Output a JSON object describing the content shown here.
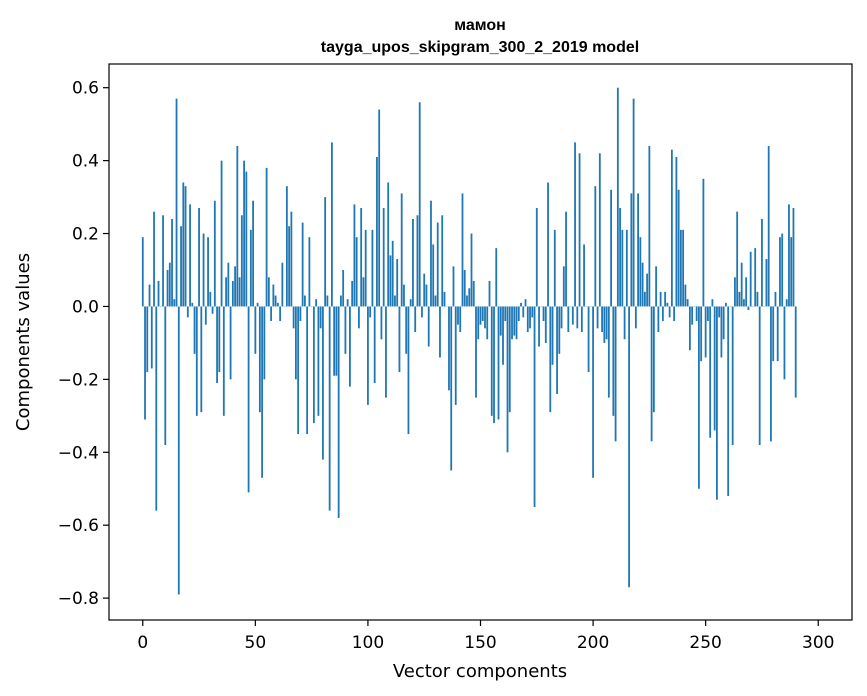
{
  "chart_data": {
    "type": "bar",
    "title": "мамон",
    "subtitle": "tayga_upos_skipgram_300_2_2019 model",
    "xlabel": "Vector components",
    "ylabel": "Components values",
    "xlim": [
      -15,
      315
    ],
    "ylim": [
      -0.86,
      0.665
    ],
    "xticks": [
      0,
      50,
      100,
      150,
      200,
      250,
      300
    ],
    "yticks": [
      -0.8,
      -0.6,
      -0.4,
      -0.2,
      0.0,
      0.2,
      0.4,
      0.6
    ],
    "ytick_labels": [
      "−0.8",
      "−0.6",
      "−0.4",
      "−0.2",
      "0.0",
      "0.2",
      "0.4",
      "0.6"
    ],
    "xtick_labels": [
      "0",
      "50",
      "100",
      "150",
      "200",
      "250",
      "300"
    ],
    "bar_color": "#1f77b4",
    "grid": false,
    "values": [
      0.19,
      -0.31,
      -0.18,
      0.06,
      -0.17,
      0.26,
      -0.56,
      0.07,
      0.0,
      0.25,
      -0.38,
      0.1,
      0.12,
      0.24,
      0.02,
      0.57,
      -0.79,
      0.22,
      0.34,
      0.33,
      -0.03,
      0.28,
      0.01,
      -0.13,
      -0.3,
      0.27,
      -0.29,
      0.2,
      -0.05,
      0.19,
      0.04,
      -0.02,
      0.29,
      -0.21,
      -0.18,
      0.4,
      -0.3,
      0.08,
      0.12,
      -0.2,
      0.07,
      0.11,
      0.44,
      0.08,
      0.25,
      0.4,
      0.37,
      -0.51,
      0.21,
      0.29,
      -0.13,
      0.01,
      -0.29,
      -0.47,
      -0.2,
      0.38,
      0.08,
      -0.04,
      0.06,
      0.03,
      0.01,
      -0.04,
      0.12,
      0.0,
      0.33,
      0.22,
      0.26,
      -0.06,
      -0.2,
      -0.35,
      -0.04,
      0.23,
      0.03,
      -0.35,
      0.19,
      0.0,
      -0.32,
      0.02,
      -0.3,
      -0.06,
      -0.42,
      0.3,
      0.03,
      -0.56,
      0.45,
      -0.19,
      -0.19,
      -0.58,
      0.03,
      0.1,
      -0.13,
      0.02,
      -0.22,
      0.07,
      0.28,
      0.19,
      -0.06,
      0.27,
      0.08,
      0.21,
      -0.27,
      -0.03,
      0.21,
      -0.21,
      0.41,
      0.54,
      -0.09,
      0.27,
      -0.25,
      0.34,
      0.14,
      0.18,
      0.03,
      0.13,
      -0.18,
      0.31,
      0.06,
      -0.13,
      -0.35,
      0.02,
      0.24,
      -0.07,
      0.25,
      0.56,
      -0.03,
      0.09,
      0.06,
      -0.11,
      0.29,
      0.17,
      0.03,
      0.23,
      -0.14,
      0.25,
      0.04,
      0.0,
      -0.23,
      -0.45,
      0.11,
      -0.27,
      -0.05,
      -0.07,
      0.31,
      0.1,
      0.03,
      0.05,
      0.2,
      0.07,
      -0.25,
      -0.09,
      -0.05,
      -0.04,
      -0.06,
      -0.09,
      0.07,
      -0.3,
      -0.32,
      0.16,
      -0.31,
      -0.08,
      -0.16,
      -0.04,
      -0.4,
      -0.29,
      -0.09,
      -0.08,
      -0.09,
      -0.04,
      0.01,
      -0.03,
      0.02,
      -0.07,
      -0.06,
      -0.03,
      -0.55,
      0.27,
      -0.11,
      0.0,
      -0.04,
      -0.1,
      0.34,
      -0.29,
      -0.16,
      0.21,
      -0.24,
      -0.13,
      -0.06,
      0.11,
      0.26,
      -0.07,
      0.0,
      -0.05,
      0.45,
      -0.06,
      0.42,
      -0.07,
      0.17,
      0.0,
      -0.18,
      0.0,
      -0.47,
      0.33,
      -0.06,
      0.42,
      -0.07,
      -0.1,
      -0.09,
      -0.25,
      0.32,
      -0.3,
      -0.37,
      0.6,
      0.27,
      0.21,
      -0.09,
      0.21,
      -0.77,
      0.31,
      0.57,
      -0.06,
      0.31,
      0.19,
      0.12,
      0.04,
      0.09,
      0.44,
      -0.37,
      -0.29,
      0.11,
      -0.07,
      0.04,
      -0.04,
      0.04,
      0.01,
      -0.03,
      0.43,
      -0.04,
      0.41,
      0.32,
      0.21,
      0.21,
      0.06,
      0.02,
      -0.12,
      -0.05,
      0.0,
      -0.04,
      -0.5,
      -0.15,
      0.35,
      -0.14,
      -0.04,
      -0.36,
      0.02,
      -0.34,
      -0.53,
      -0.03,
      -0.14,
      -0.09,
      0.01,
      -0.52,
      0.0,
      -0.38,
      0.08,
      0.26,
      0.04,
      0.12,
      0.02,
      0.08,
      -0.01,
      0.15,
      0.0,
      0.16,
      0.04,
      -0.38,
      0.24,
      0.0,
      0.13,
      0.44,
      -0.37,
      -0.15,
      0.04,
      -0.15,
      0.19,
      0.2,
      -0.2,
      0.02,
      0.28,
      0.19,
      0.27,
      -0.25
    ]
  }
}
